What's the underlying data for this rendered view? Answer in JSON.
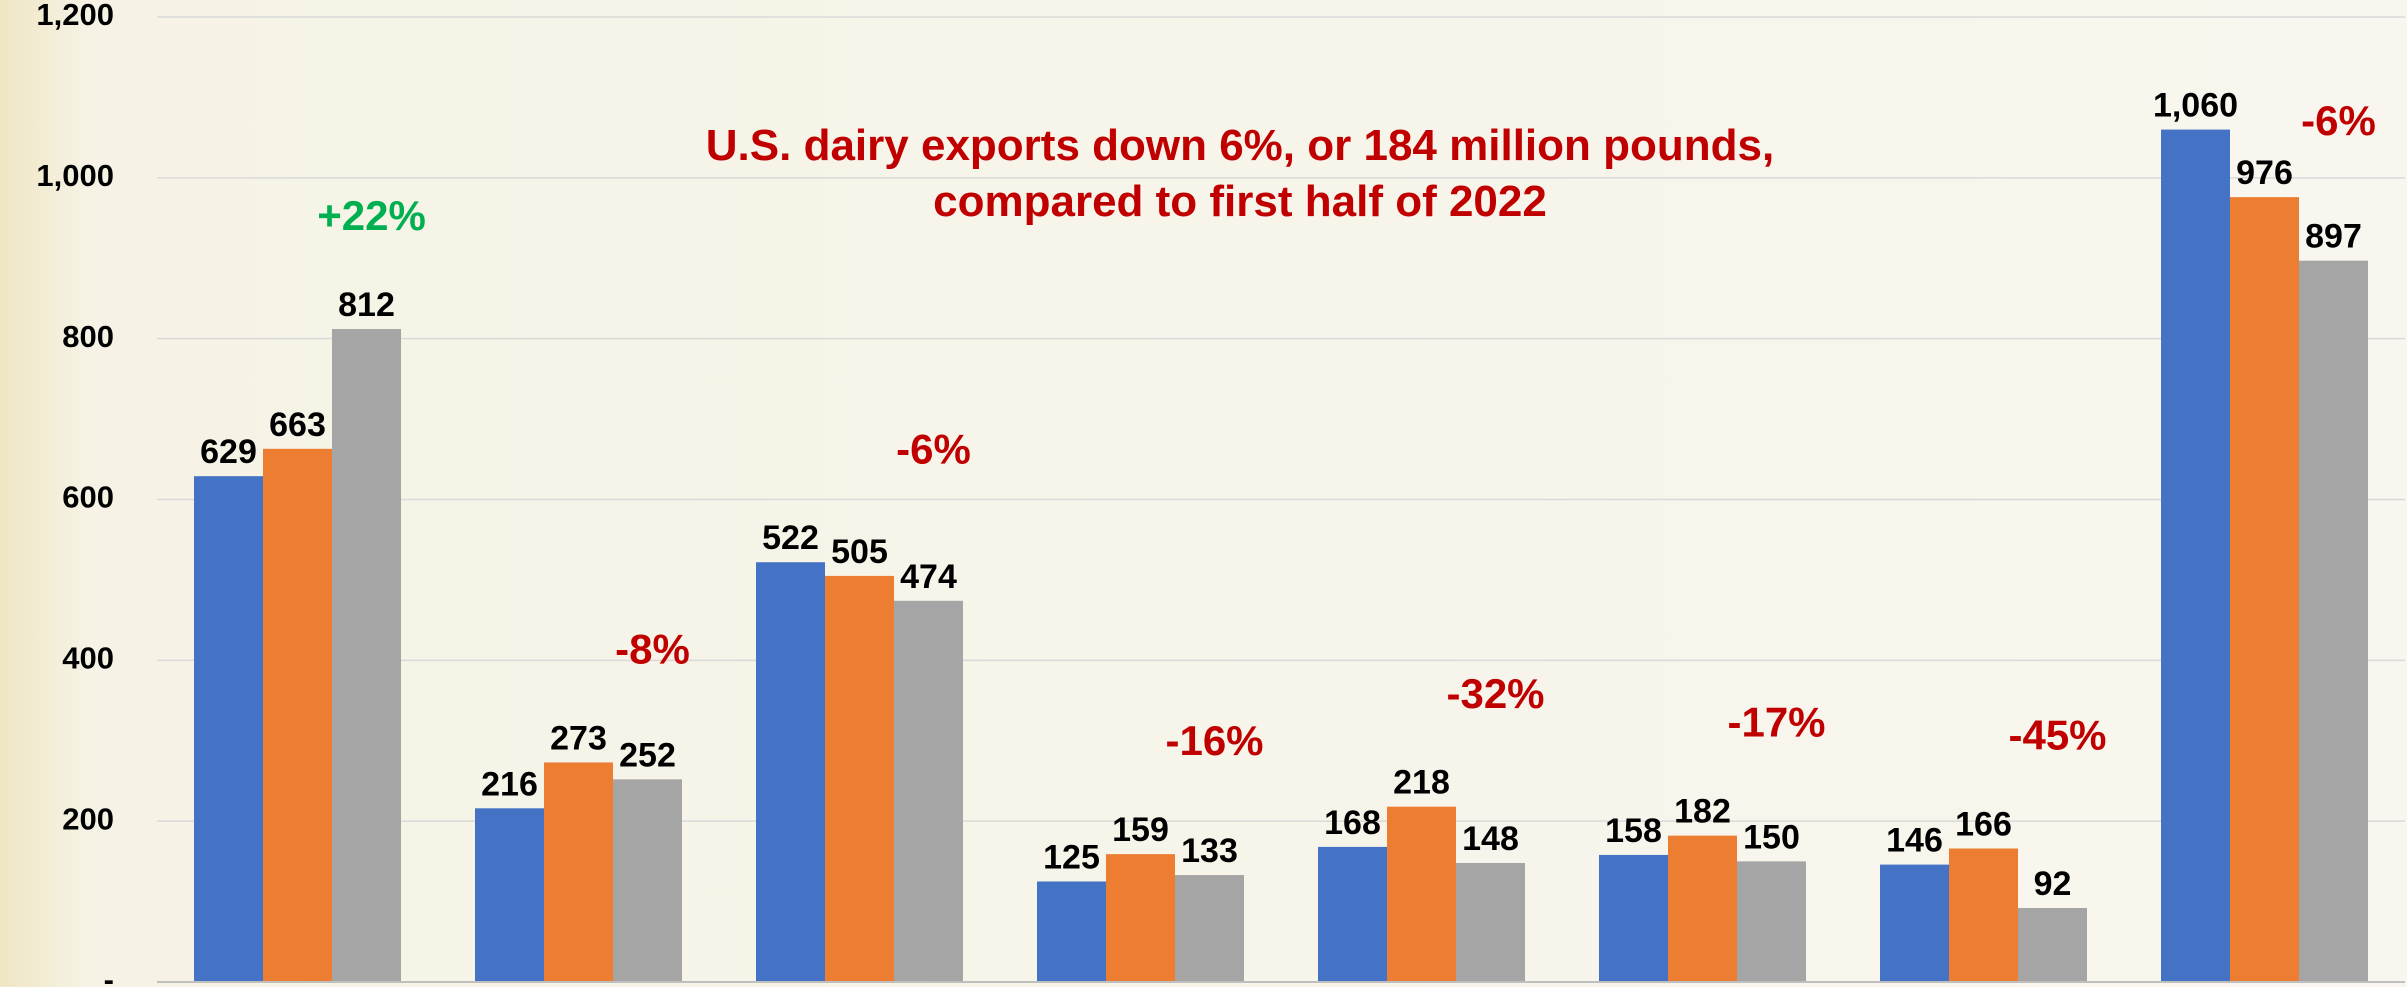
{
  "chart_data": {
    "type": "bar",
    "title": "U.S. dairy exports down 6%, or 184 million pounds, compared to first half of 2022",
    "categories": [
      null,
      null,
      null,
      null,
      null,
      null,
      null,
      null
    ],
    "series": [
      {
        "color": "#4472c4",
        "values": [
          629,
          216,
          522,
          125,
          168,
          158,
          146,
          1060
        ],
        "value_labels": [
          "629",
          "216",
          "522",
          "125",
          "168",
          "158",
          "146",
          "1,060"
        ]
      },
      {
        "color": "#ed7d31",
        "values": [
          663,
          273,
          505,
          159,
          218,
          182,
          166,
          976
        ]
      },
      {
        "color": "#a5a5a5",
        "values": [
          812,
          252,
          474,
          133,
          148,
          150,
          92,
          897
        ]
      }
    ],
    "annotations": [
      {
        "text": "+22%",
        "color": "#00b050"
      },
      {
        "text": "-8%",
        "color": "#c00000"
      },
      {
        "text": "-6%",
        "color": "#c00000"
      },
      {
        "text": "-16%",
        "color": "#c00000"
      },
      {
        "text": "-32%",
        "color": "#c00000"
      },
      {
        "text": "-17%",
        "color": "#c00000"
      },
      {
        "text": "-45%",
        "color": "#c00000"
      },
      {
        "text": "-6%",
        "color": "#c00000"
      }
    ],
    "ylim": [
      0,
      1200
    ],
    "yticks": [
      {
        "value": 0,
        "label": "-"
      },
      200,
      400,
      600,
      800,
      {
        "value": 1000,
        "label": "1,000"
      },
      {
        "value": 1200,
        "label": "1,200"
      }
    ],
    "grid": true
  }
}
